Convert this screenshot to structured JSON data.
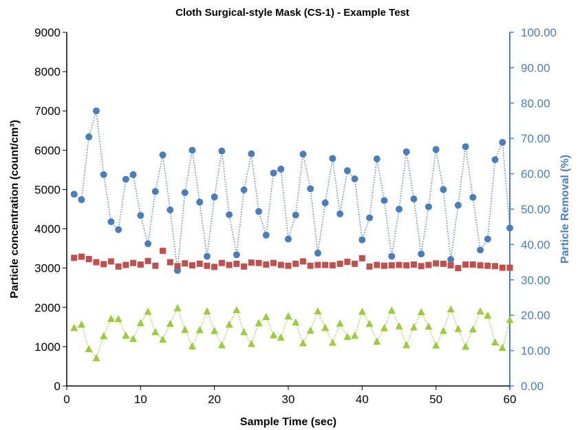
{
  "chart_data": {
    "type": "scatter",
    "title": "Cloth Surgical-style Mask (CS-1) - Example Test",
    "xlabel": "Sample Time (sec)",
    "ylabel": "Particle concentration (count/cm³)",
    "y2label": "Particle Removal (%)",
    "xlim": [
      0,
      60
    ],
    "ylim": [
      0,
      9000
    ],
    "y2lim": [
      0,
      100
    ],
    "x_ticks": [
      0,
      10,
      20,
      30,
      40,
      50,
      60
    ],
    "y_ticks": [
      0,
      1000,
      2000,
      3000,
      4000,
      5000,
      6000,
      7000,
      8000,
      9000
    ],
    "y2_ticks": [
      "0.00",
      "10.00",
      "20.00",
      "30.00",
      "40.00",
      "50.00",
      "60.00",
      "70.00",
      "80.00",
      "90.00",
      "100.00"
    ],
    "grid": false,
    "legend": "none",
    "colors": {
      "blue_circles": "#4a7ebb",
      "red_squares": "#c0504d",
      "green_triangles": "#9bcc3e",
      "right_axis": "#4a7ebb",
      "left_axis": "#000000"
    },
    "series": [
      {
        "marker": "circle",
        "axis": "left",
        "color": "#4a7ebb",
        "line": "dotted",
        "x": [
          1,
          2,
          3,
          4,
          5,
          6,
          7,
          8,
          9,
          10,
          11,
          12,
          13,
          14,
          15,
          16,
          17,
          18,
          19,
          20,
          21,
          22,
          23,
          24,
          25,
          26,
          27,
          28,
          29,
          30,
          31,
          32,
          33,
          34,
          35,
          36,
          37,
          38,
          39,
          40,
          41,
          42,
          43,
          44,
          45,
          46,
          47,
          48,
          49,
          50,
          51,
          52,
          53,
          54,
          55,
          56,
          57,
          58,
          59,
          60
        ],
        "values": [
          4880,
          4740,
          6340,
          7000,
          5380,
          4180,
          3980,
          5260,
          5380,
          4340,
          3620,
          4950,
          5880,
          4480,
          2940,
          4920,
          6000,
          4680,
          3300,
          4810,
          5980,
          4360,
          3340,
          4990,
          5910,
          4440,
          3840,
          5420,
          5520,
          3740,
          4350,
          5900,
          5020,
          3380,
          4660,
          5790,
          4380,
          5480,
          5270,
          3720,
          4280,
          5780,
          4720,
          3300,
          4500,
          5960,
          4760,
          3360,
          4560,
          6020,
          5000,
          3220,
          4600,
          6090,
          4800,
          3460,
          3740,
          5760,
          6200,
          4020
        ]
      },
      {
        "marker": "square",
        "axis": "left",
        "color": "#c0504d",
        "line": "none",
        "x": [
          1,
          2,
          3,
          4,
          5,
          6,
          7,
          8,
          9,
          10,
          11,
          12,
          13,
          14,
          15,
          16,
          17,
          18,
          19,
          20,
          21,
          22,
          23,
          24,
          25,
          26,
          27,
          28,
          29,
          30,
          31,
          32,
          33,
          34,
          35,
          36,
          37,
          38,
          39,
          40,
          41,
          42,
          43,
          44,
          45,
          46,
          47,
          48,
          49,
          50,
          51,
          52,
          53,
          54,
          55,
          56,
          57,
          58,
          59,
          60
        ],
        "values": [
          3260,
          3290,
          3230,
          3150,
          3100,
          3170,
          3040,
          3080,
          3130,
          3090,
          3180,
          3060,
          3440,
          3150,
          3050,
          3120,
          3070,
          3110,
          3060,
          3030,
          3130,
          3080,
          3110,
          3040,
          3140,
          3130,
          3090,
          3130,
          3080,
          3060,
          3110,
          3170,
          3060,
          3080,
          3080,
          3070,
          3110,
          3160,
          3110,
          3250,
          3040,
          3080,
          3060,
          3070,
          3080,
          3070,
          3090,
          3050,
          3080,
          3120,
          3110,
          3070,
          3000,
          3090,
          3090,
          3070,
          3060,
          3050,
          3010,
          3010
        ]
      },
      {
        "marker": "triangle",
        "axis": "left",
        "color": "#9bcc3e",
        "line": "dotted",
        "x": [
          1,
          2,
          3,
          4,
          5,
          6,
          7,
          8,
          9,
          10,
          11,
          12,
          13,
          14,
          15,
          16,
          17,
          18,
          19,
          20,
          21,
          22,
          23,
          24,
          25,
          26,
          27,
          28,
          29,
          30,
          31,
          32,
          33,
          34,
          35,
          36,
          37,
          38,
          39,
          40,
          41,
          42,
          43,
          44,
          45,
          46,
          47,
          48,
          49,
          50,
          51,
          52,
          53,
          54,
          55,
          56,
          57,
          58,
          59,
          60
        ],
        "values": [
          1480,
          1560,
          940,
          710,
          1270,
          1710,
          1700,
          1280,
          1200,
          1600,
          1890,
          1370,
          1180,
          1580,
          1980,
          1430,
          1010,
          1420,
          1900,
          1400,
          1040,
          1560,
          1930,
          1370,
          1070,
          1600,
          1760,
          1290,
          1230,
          1770,
          1620,
          1090,
          1410,
          1900,
          1480,
          1100,
          1590,
          1250,
          1280,
          1890,
          1580,
          1130,
          1470,
          1920,
          1520,
          1040,
          1490,
          1880,
          1510,
          1030,
          1400,
          1950,
          1450,
          1000,
          1440,
          1900,
          1790,
          1110,
          970,
          1680
        ]
      }
    ]
  }
}
